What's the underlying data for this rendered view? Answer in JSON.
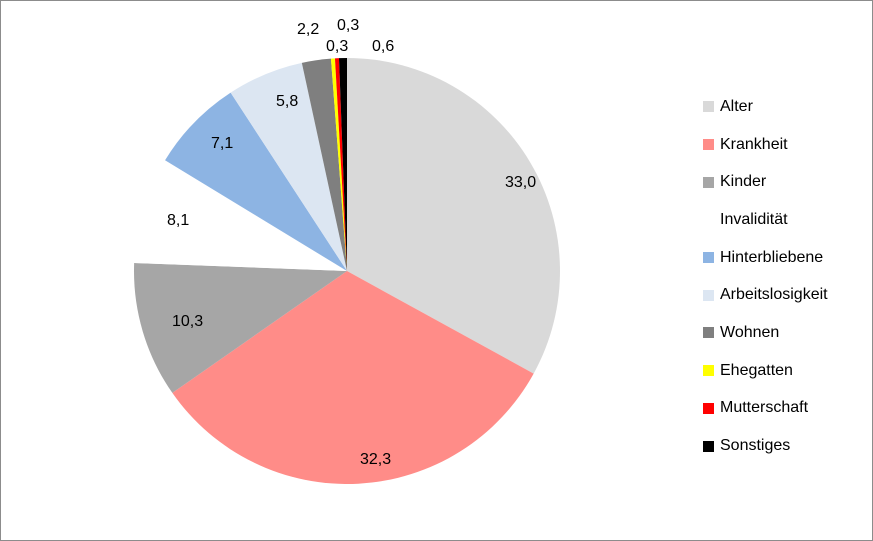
{
  "chart_data": {
    "type": "pie",
    "title": "",
    "categories": [
      "Alter",
      "Krankheit",
      "Kinder",
      "Invalidität",
      "Hinterbliebene",
      "Arbeitslosigkeit",
      "Wohnen",
      "Ehegatten",
      "Mutterschaft",
      "Sonstiges"
    ],
    "values": [
      33.0,
      32.3,
      10.3,
      8.1,
      7.1,
      5.8,
      2.2,
      0.3,
      0.3,
      0.6
    ],
    "value_labels": [
      "33,0",
      "32,3",
      "10,3",
      "8,1",
      "7,1",
      "5,8",
      "2,2",
      "0,3",
      "0,3",
      "0,6"
    ],
    "colors": [
      "#d9d9d9",
      "#ff8c88",
      "#a6a6a6",
      "#ffffff",
      "#8db4e3",
      "#dce6f2",
      "#7f7f7f",
      "#ffff00",
      "#ff0000",
      "#000000"
    ],
    "start_angle_deg": 0,
    "direction": "clockwise",
    "legend_position": "right"
  }
}
